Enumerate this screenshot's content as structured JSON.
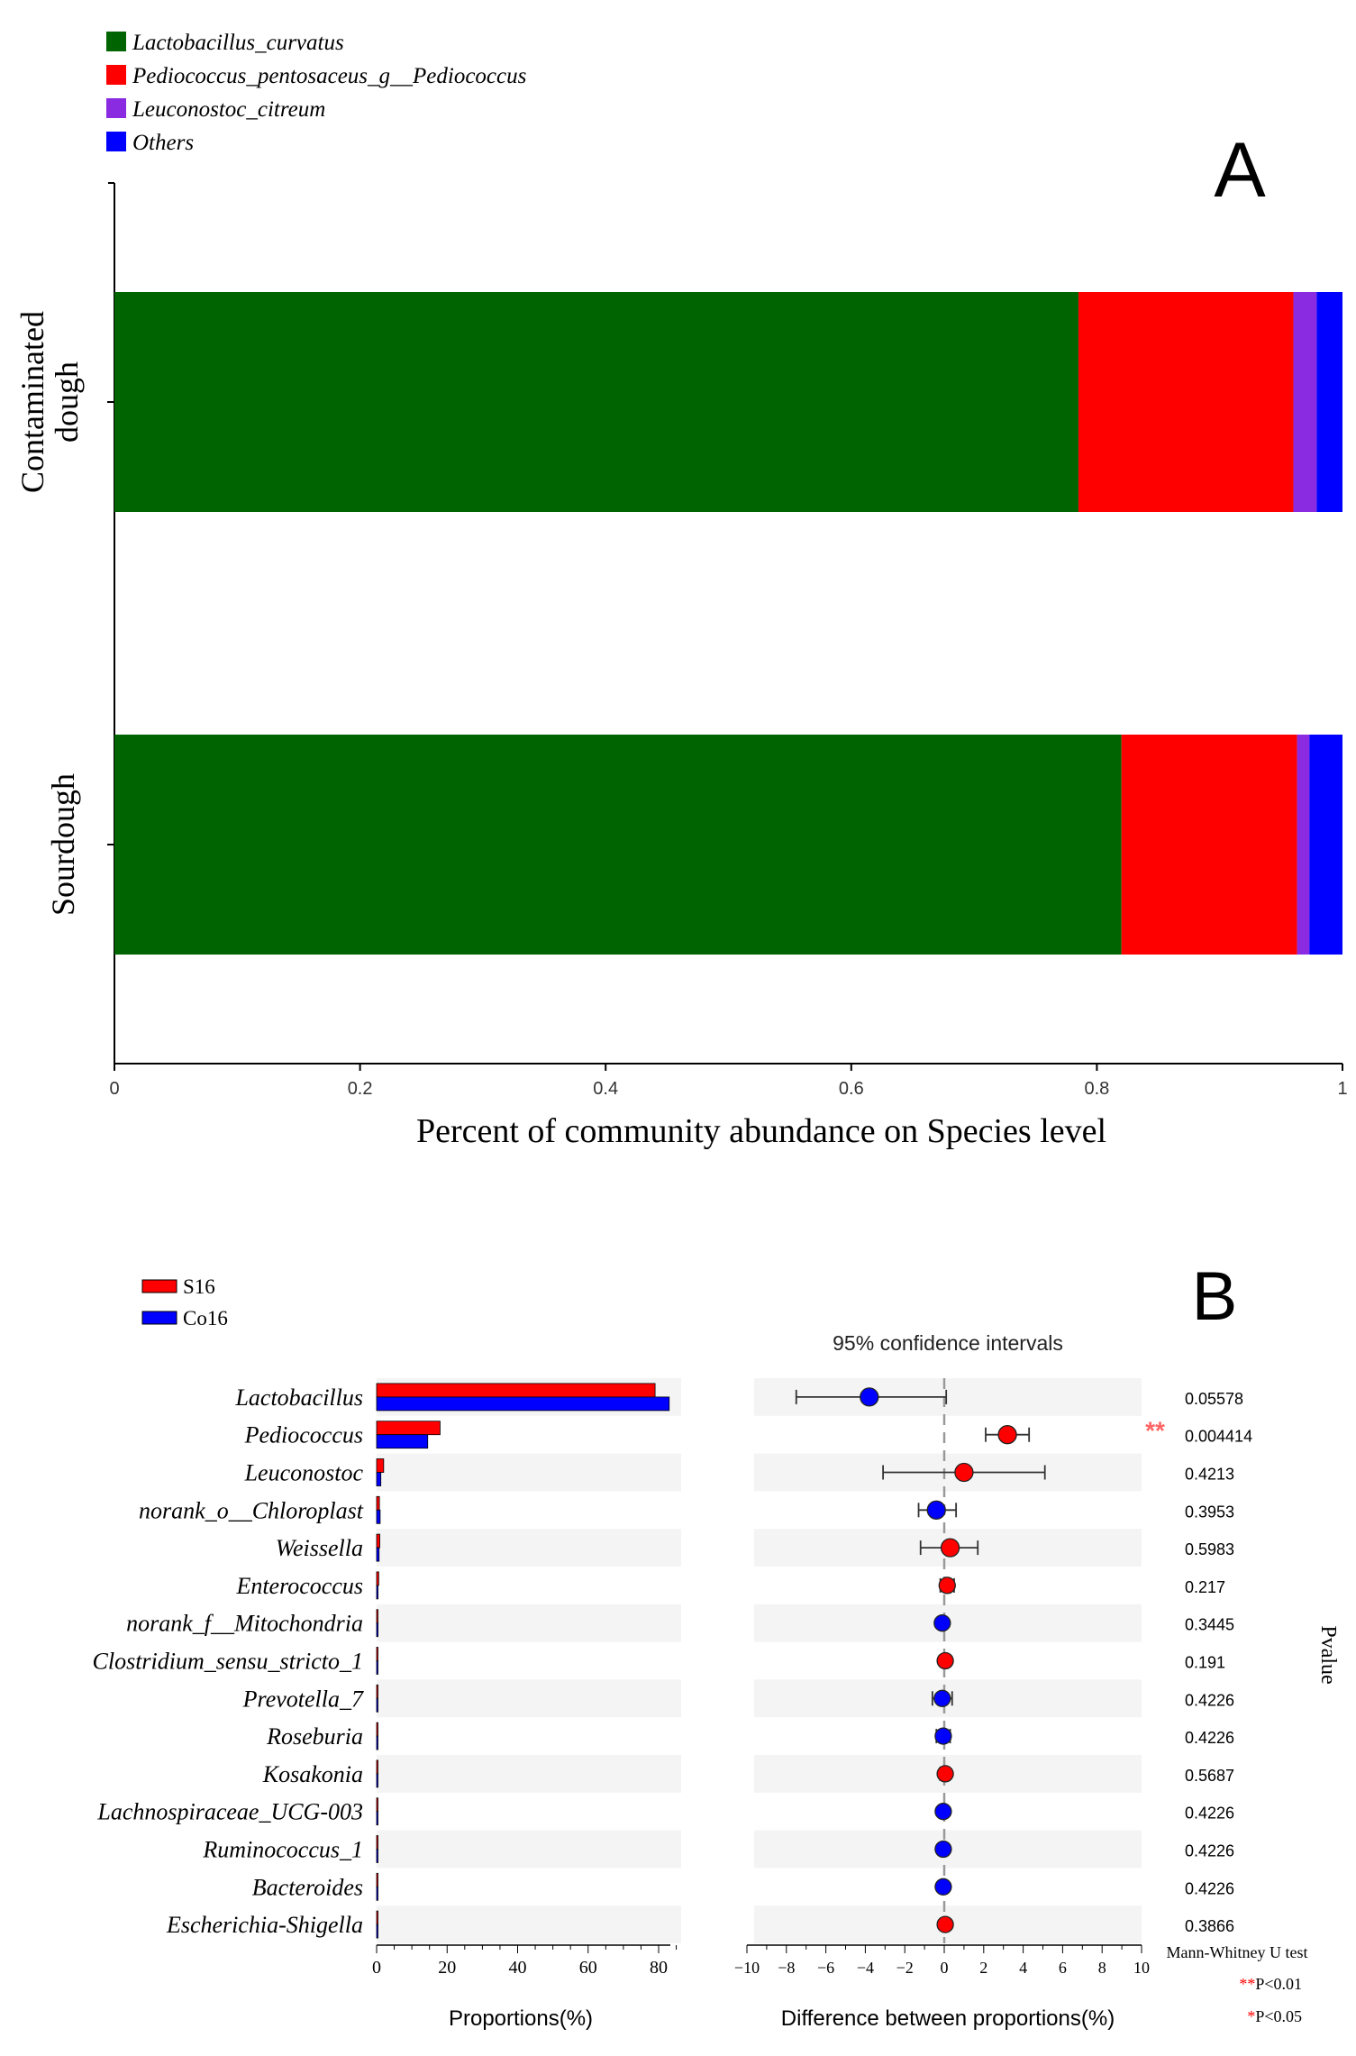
{
  "chart_data": [
    {
      "panel": "A",
      "type": "bar",
      "orientation": "horizontal-stacked",
      "categories": [
        "Contaminated dough",
        "Sourdough"
      ],
      "series": [
        {
          "name": "Lactobacillus_curvatus",
          "color": "#006400",
          "values": [
            0.785,
            0.82
          ]
        },
        {
          "name": "Pediococcus_pentosaceus_g__Pediococcus",
          "color": "#ff0000",
          "values": [
            0.175,
            0.143
          ]
        },
        {
          "name": "Leuconostoc_citreum",
          "color": "#8a2be2",
          "values": [
            0.019,
            0.01
          ]
        },
        {
          "name": "Others",
          "color": "#0000ff",
          "values": [
            0.021,
            0.027
          ]
        }
      ],
      "xlabel": "Percent of community abundance on Species level",
      "xlim": [
        0,
        1
      ],
      "xticks": [
        0,
        0.2,
        0.4,
        0.6,
        0.8,
        1
      ],
      "xtick_labels": [
        "0",
        "0.2",
        "0.4",
        "0.6",
        "0.8",
        "1"
      ],
      "panel_label": "A",
      "category_labels": [
        [
          "Contaminated",
          "dough"
        ],
        [
          "Sourdough"
        ]
      ]
    },
    {
      "panel": "B-proportions",
      "type": "bar",
      "orientation": "horizontal-grouped",
      "categories": [
        "Lactobacillus",
        "Pediococcus",
        "Leuconostoc",
        "norank_o__Chloroplast",
        "Weissella",
        "Enterococcus",
        "norank_f__Mitochondria",
        "Clostridium_sensu_stricto_1",
        "Prevotella_7",
        "Roseburia",
        "Kosakonia",
        "Lachnospiraceae_UCG-003",
        "Ruminococcus_1",
        "Bacteroides",
        "Escherichia-Shigella"
      ],
      "series": [
        {
          "name": "S16",
          "color": "#ff0000",
          "values": [
            79,
            18,
            2.0,
            0.8,
            0.9,
            0.6,
            0.3,
            0.3,
            0.2,
            0.2,
            0.2,
            0.15,
            0.15,
            0.15,
            0.15
          ]
        },
        {
          "name": "Co16",
          "color": "#0000ff",
          "values": [
            83,
            14.5,
            1.2,
            1.0,
            0.7,
            0.4,
            0.4,
            0.2,
            0.3,
            0.3,
            0.15,
            0.2,
            0.2,
            0.2,
            0.1
          ]
        }
      ],
      "xlabel": "Proportions(%)",
      "xlim": [
        0,
        85
      ],
      "xticks": [
        0,
        20,
        40,
        60,
        80
      ],
      "xtick_labels": [
        "0",
        "20",
        "40",
        "60",
        "80"
      ]
    },
    {
      "panel": "B-difference",
      "type": "scatter",
      "title": "95% confidence intervals",
      "xlabel": "Difference between proportions(%)",
      "xlim": [
        -10,
        10
      ],
      "xticks": [
        -10,
        -8,
        -6,
        -4,
        -2,
        0,
        2,
        4,
        6,
        8,
        10
      ],
      "xtick_labels": [
        "−10",
        "−8",
        "−6",
        "−4",
        "−2",
        "0",
        "2",
        "4",
        "6",
        "8",
        "10"
      ],
      "points": [
        {
          "category": "Lactobacillus",
          "diff": -3.8,
          "lo": -7.5,
          "hi": 0.1,
          "color": "#0000ff",
          "pvalue": "0.05578",
          "sig": ""
        },
        {
          "category": "Pediococcus",
          "diff": 3.2,
          "lo": 2.1,
          "hi": 4.3,
          "color": "#ff0000",
          "pvalue": "0.004414",
          "sig": "**"
        },
        {
          "category": "Leuconostoc",
          "diff": 1.0,
          "lo": -3.1,
          "hi": 5.1,
          "color": "#ff0000",
          "pvalue": "0.4213",
          "sig": ""
        },
        {
          "category": "norank_o__Chloroplast",
          "diff": -0.4,
          "lo": -1.3,
          "hi": 0.6,
          "color": "#0000ff",
          "pvalue": "0.3953",
          "sig": ""
        },
        {
          "category": "Weissella",
          "diff": 0.3,
          "lo": -1.2,
          "hi": 1.7,
          "color": "#ff0000",
          "pvalue": "0.5983",
          "sig": ""
        },
        {
          "category": "Enterococcus",
          "diff": 0.15,
          "lo": -0.2,
          "hi": 0.5,
          "color": "#ff0000",
          "pvalue": "0.217",
          "sig": ""
        },
        {
          "category": "norank_f__Mitochondria",
          "diff": -0.1,
          "lo": -0.3,
          "hi": 0.1,
          "color": "#0000ff",
          "pvalue": "0.3445",
          "sig": ""
        },
        {
          "category": "Clostridium_sensu_stricto_1",
          "diff": 0.05,
          "lo": -0.1,
          "hi": 0.2,
          "color": "#ff0000",
          "pvalue": "0.191",
          "sig": ""
        },
        {
          "category": "Prevotella_7",
          "diff": -0.1,
          "lo": -0.6,
          "hi": 0.4,
          "color": "#0000ff",
          "pvalue": "0.4226",
          "sig": ""
        },
        {
          "category": "Roseburia",
          "diff": -0.05,
          "lo": -0.4,
          "hi": 0.3,
          "color": "#0000ff",
          "pvalue": "0.4226",
          "sig": ""
        },
        {
          "category": "Kosakonia",
          "diff": 0.05,
          "lo": -0.2,
          "hi": 0.2,
          "color": "#ff0000",
          "pvalue": "0.5687",
          "sig": ""
        },
        {
          "category": "Lachnospiraceae_UCG-003",
          "diff": -0.05,
          "lo": -0.2,
          "hi": 0.1,
          "color": "#0000ff",
          "pvalue": "0.4226",
          "sig": ""
        },
        {
          "category": "Ruminococcus_1",
          "diff": -0.05,
          "lo": -0.2,
          "hi": 0.1,
          "color": "#0000ff",
          "pvalue": "0.4226",
          "sig": ""
        },
        {
          "category": "Bacteroides",
          "diff": -0.05,
          "lo": -0.2,
          "hi": 0.1,
          "color": "#0000ff",
          "pvalue": "0.4226",
          "sig": ""
        },
        {
          "category": "Escherichia-Shigella",
          "diff": 0.05,
          "lo": -0.1,
          "hi": 0.2,
          "color": "#ff0000",
          "pvalue": "0.3866",
          "sig": ""
        }
      ],
      "pvalue_axis_label": "Pvalue",
      "test_name": "Mann-Whitney U test",
      "sig_legend": [
        {
          "stars": "**",
          "label": "P<0.01"
        },
        {
          "stars": "*",
          "label": "P<0.05"
        }
      ],
      "panel_label": "B"
    }
  ]
}
